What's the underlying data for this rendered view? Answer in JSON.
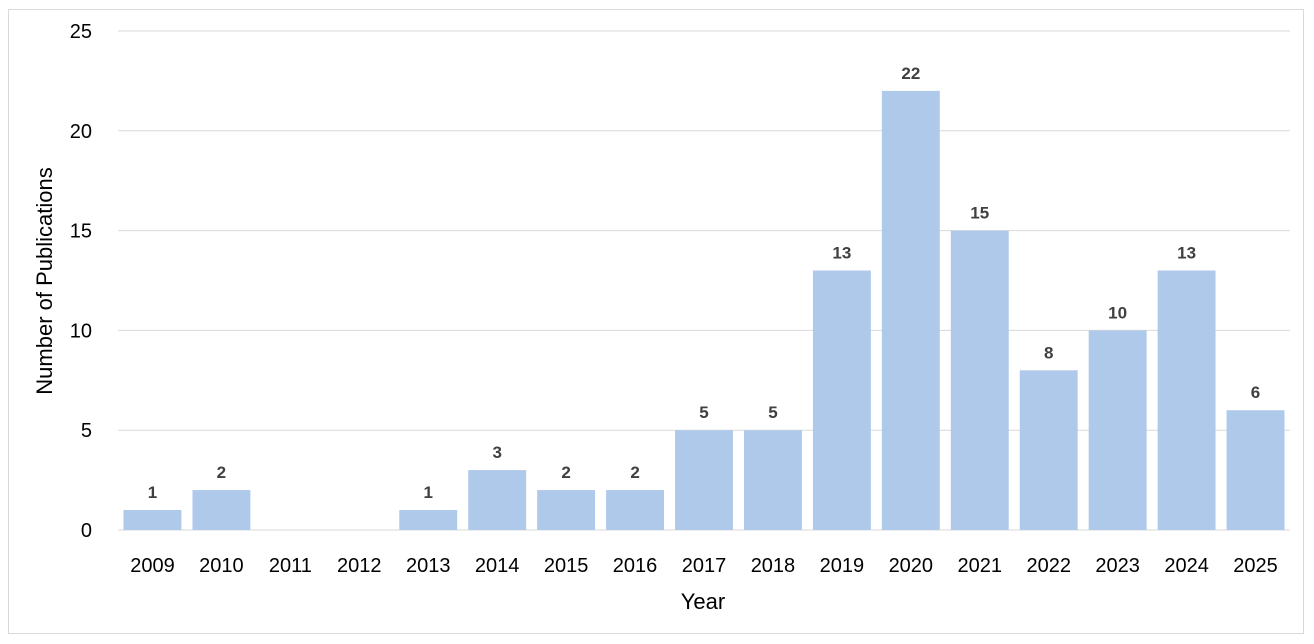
{
  "chart_data": {
    "type": "bar",
    "categories": [
      "2009",
      "2010",
      "2011",
      "2012",
      "2013",
      "2014",
      "2015",
      "2016",
      "2017",
      "2018",
      "2019",
      "2020",
      "2021",
      "2022",
      "2023",
      "2024",
      "2025"
    ],
    "values": [
      1,
      2,
      0,
      0,
      1,
      3,
      2,
      2,
      5,
      5,
      13,
      22,
      15,
      8,
      10,
      13,
      6
    ],
    "data_labels": [
      "1",
      "2",
      "",
      "",
      "1",
      "3",
      "2",
      "2",
      "5",
      "5",
      "13",
      "22",
      "15",
      "8",
      "10",
      "13",
      "6"
    ],
    "title": "",
    "xlabel": "Year",
    "ylabel": "Number of Publications",
    "ylim": [
      0,
      25
    ],
    "yticks": [
      0,
      5,
      10,
      15,
      20,
      25
    ],
    "grid": true,
    "bar_color": "#aec9ea",
    "legend": "none"
  }
}
